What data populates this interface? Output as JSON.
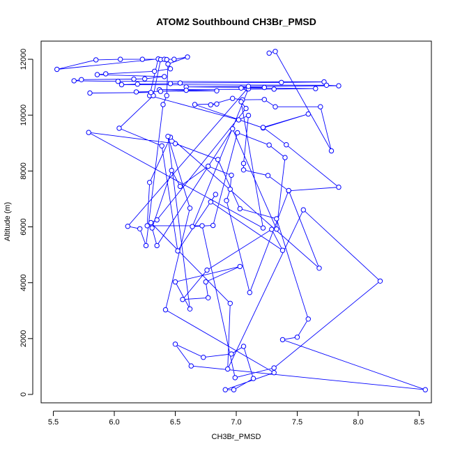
{
  "chart_data": {
    "type": "line",
    "title": "ATOM2 Southbound CH3Br_PMSD",
    "xlabel": "CH3Br_PMSD",
    "ylabel": "Altitude (m)",
    "xlim": [
      5.4,
      8.6
    ],
    "ylim": [
      -300,
      12650
    ],
    "x_ticks": [
      5.5,
      6.0,
      6.5,
      7.0,
      7.5,
      8.0,
      8.5
    ],
    "x_tick_labels": [
      "5.5",
      "6.0",
      "6.5",
      "7.0",
      "7.5",
      "8.0",
      "8.5"
    ],
    "y_ticks": [
      0,
      2000,
      4000,
      6000,
      8000,
      10000,
      12000
    ],
    "y_tick_labels": [
      "0",
      "2000",
      "4000",
      "6000",
      "8000",
      "10000",
      "12000"
    ],
    "grid": false,
    "marker": "open-circle",
    "color": "#0000ff",
    "series": [
      {
        "x": [
          7.27,
          7.32,
          7.78,
          7.69,
          7.32,
          7.23,
          7.05,
          6.97,
          6.79,
          6.84,
          6.66,
          7.22,
          7.59,
          7.22,
          7.41,
          7.84,
          7.43,
          7.26,
          7.06,
          7.06,
          7.1,
          7.02,
          6.29,
          6.36,
          5.53,
          5.85,
          6.05,
          6.23,
          6.49,
          6.6,
          6.44,
          6.43,
          6.4,
          6.26,
          6.21,
          6.11,
          7.09,
          7.1,
          6.64,
          6.81,
          7.01,
          7.27,
          7.4,
          7.33,
          6.97,
          6.35,
          6.31,
          6.47,
          6.54,
          6.77,
          6.96,
          6.95,
          6.92,
          7.11,
          7.43,
          7.68,
          6.46,
          6.29,
          6.27,
          6.72,
          6.99,
          7.31,
          8.18,
          7.55,
          6.93,
          6.95,
          6.3,
          6.35,
          7.08,
          7.04,
          7.22,
          5.79,
          6.5,
          6.85,
          7.03,
          7.33,
          7.59,
          7.5,
          7.38,
          8.55,
          6.63,
          6.5,
          6.73,
          6.96,
          7.06,
          7.14,
          6.98,
          6.91,
          7.31,
          6.42,
          6.62,
          6.44,
          6.62,
          6.5,
          7.03,
          6.75,
          6.77,
          6.56,
          6.76,
          7.29,
          7.38,
          6.79,
          6.83,
          6.52,
          6.39,
          6.04,
          6.32,
          6.38,
          6.41,
          6.43,
          6.46,
          6.33,
          5.93,
          5.86,
          6.41,
          6.25,
          6.16,
          5.73,
          5.67,
          6.03,
          7.72,
          7.37,
          6.54,
          6.46,
          6.19,
          6.06,
          7.74,
          7.84,
          7.1,
          6.59,
          7.23,
          7.04,
          7.65,
          7.31,
          6.37,
          6.59,
          6.84,
          6.38,
          6.18,
          6.3,
          5.8
        ],
        "y": [
          12220,
          12280,
          8720,
          10300,
          10300,
          10560,
          10550,
          10600,
          10370,
          10400,
          10380,
          9540,
          10040,
          9560,
          8940,
          7420,
          7290,
          7840,
          8040,
          8270,
          9990,
          9830,
          10700,
          12010,
          11640,
          11980,
          12000,
          12000,
          12000,
          12080,
          11830,
          10700,
          10380,
          5330,
          5930,
          6020,
          10940,
          10940,
          6010,
          6050,
          9370,
          8930,
          8480,
          5920,
          9510,
          5330,
          5960,
          8020,
          7450,
          8170,
          7850,
          7350,
          6940,
          3650,
          7300,
          4520,
          9210,
          7590,
          6040,
          6040,
          600,
          950,
          4060,
          6610,
          910,
          3260,
          6150,
          6250,
          10240,
          10480,
          5960,
          9380,
          8980,
          8410,
          6650,
          6290,
          2700,
          2050,
          1960,
          170,
          1020,
          1800,
          1330,
          1450,
          1720,
          570,
          170,
          170,
          780,
          3030,
          6670,
          9240,
          3060,
          4030,
          4580,
          4030,
          3460,
          3400,
          4450,
          5910,
          5160,
          6890,
          7160,
          5140,
          8900,
          9530,
          10700,
          11990,
          12000,
          11990,
          11660,
          11570,
          11480,
          11450,
          11380,
          11300,
          11290,
          11270,
          11230,
          11210,
          11190,
          11170,
          11150,
          11130,
          11110,
          11090,
          11070,
          11050,
          11030,
          11010,
          10990,
          10970,
          10950,
          10930,
          10910,
          10890,
          10870,
          10850,
          10830,
          10810,
          10790
        ]
      }
    ]
  }
}
